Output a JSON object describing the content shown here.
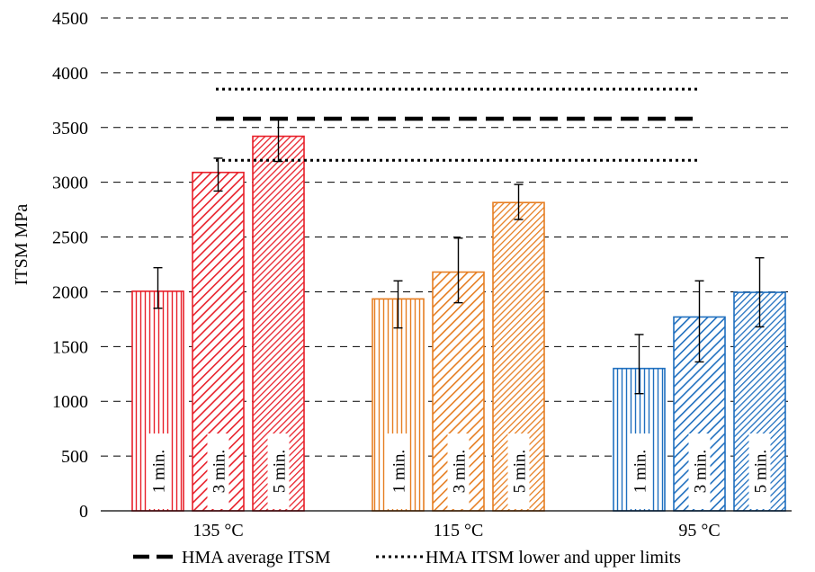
{
  "chart_data": {
    "type": "bar",
    "ylabel": "ITSM MPa",
    "ylim": [
      0,
      4500
    ],
    "yticks": [
      0,
      500,
      1000,
      1500,
      2000,
      2500,
      3000,
      3500,
      4000,
      4500
    ],
    "grid": "horizontal-dashed",
    "groups": [
      {
        "label": "135 °C",
        "color": "#e8202a",
        "bars": [
          {
            "label": "1 min.",
            "value": 2005,
            "err_low": 1850,
            "err_high": 2220,
            "pattern": "vertical"
          },
          {
            "label": "3 min.",
            "value": 3090,
            "err_low": 2920,
            "err_high": 3220,
            "pattern": "diagonal"
          },
          {
            "label": "5 min.",
            "value": 3420,
            "err_low": 3190,
            "err_high": 3580,
            "pattern": "dense-diagonal"
          }
        ]
      },
      {
        "label": "115 °C",
        "color": "#e67e22",
        "bars": [
          {
            "label": "1 min.",
            "value": 1935,
            "err_low": 1670,
            "err_high": 2100,
            "pattern": "vertical"
          },
          {
            "label": "3 min.",
            "value": 2180,
            "err_low": 1900,
            "err_high": 2490,
            "pattern": "diagonal"
          },
          {
            "label": "5 min.",
            "value": 2815,
            "err_low": 2660,
            "err_high": 2980,
            "pattern": "dense-diagonal"
          }
        ]
      },
      {
        "label": "95 °C",
        "color": "#1f6fbf",
        "bars": [
          {
            "label": "1 min.",
            "value": 1300,
            "err_low": 1070,
            "err_high": 1610,
            "pattern": "vertical"
          },
          {
            "label": "3 min.",
            "value": 1770,
            "err_low": 1360,
            "err_high": 2100,
            "pattern": "diagonal"
          },
          {
            "label": "5 min.",
            "value": 1995,
            "err_low": 1680,
            "err_high": 2310,
            "pattern": "dense-diagonal"
          }
        ]
      }
    ],
    "reference_lines": [
      {
        "name": "HMA average ITSM",
        "value": 3580,
        "style": "dashed-bold"
      },
      {
        "name": "HMA ITSM lower and upper limits",
        "value": 3200,
        "style": "dotted"
      },
      {
        "name": "HMA ITSM lower and upper limits",
        "value": 3850,
        "style": "dotted"
      }
    ],
    "legend": {
      "placement": "bottom",
      "entries": [
        {
          "label": "HMA average ITSM",
          "style": "dashed-bold"
        },
        {
          "label": "HMA ITSM lower and upper limits",
          "style": "dotted"
        }
      ]
    }
  }
}
